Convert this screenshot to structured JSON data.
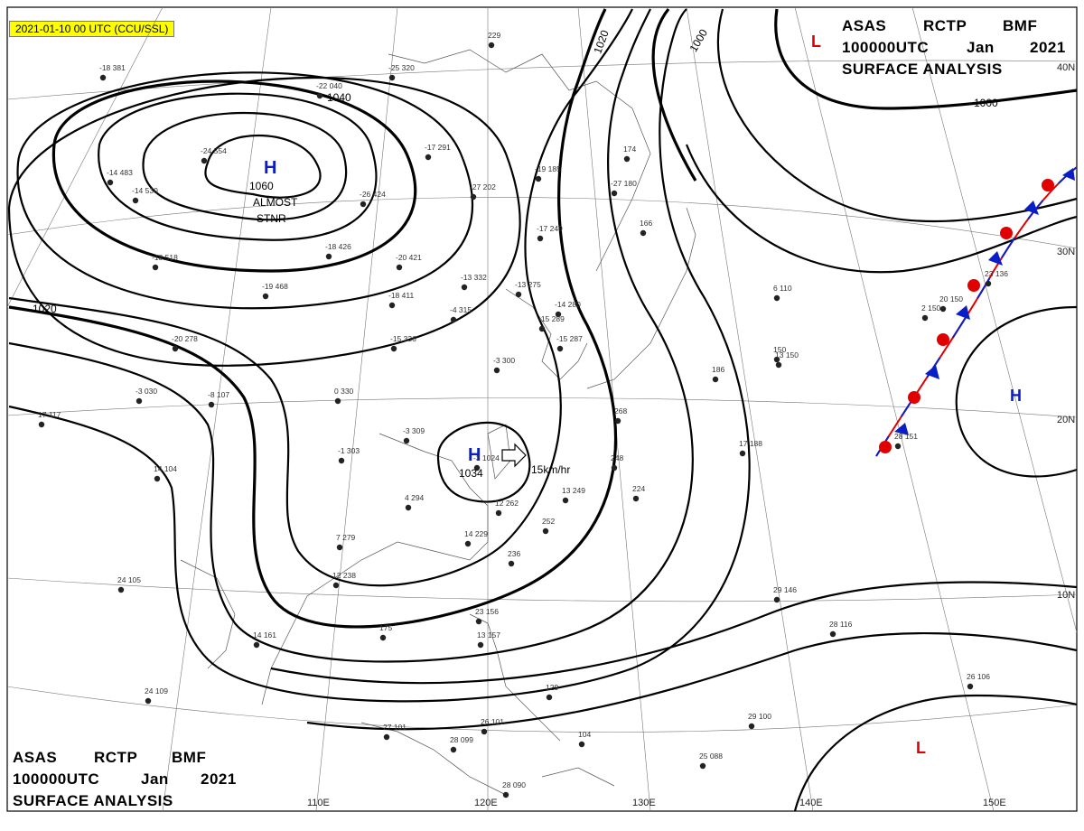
{
  "date_badge": "2021-01-10 00 UTC (CCU/SSL)",
  "title_top": {
    "line1": [
      "ASAS",
      "RCTP",
      "BMF"
    ],
    "line2": [
      "100000UTC",
      "Jan",
      "2021"
    ],
    "line3": "SURFACE ANALYSIS"
  },
  "title_bottom": {
    "line1": [
      "ASAS",
      "RCTP",
      "BMF"
    ],
    "line2": [
      "100000UTC",
      "Jan",
      "2021"
    ],
    "line3": "SURFACE ANALYSIS"
  },
  "pressure_centers": [
    {
      "type": "H",
      "value": "1060",
      "color": "#0a1ec8"
    },
    {
      "type": "H",
      "value": "1034",
      "color": "#0a1ec8"
    },
    {
      "type": "H",
      "value": "",
      "color": "#0a1ec8"
    },
    {
      "type": "L",
      "value": "",
      "color": "#e00000"
    },
    {
      "type": "L",
      "value": "",
      "color": "#e00000"
    }
  ],
  "stationary_note": [
    "ALMOST",
    "STNR"
  ],
  "motion_label": "15km/hr",
  "isobar_labels": [
    "1040",
    "1020",
    "1020",
    "1000",
    "1000"
  ],
  "lat_labels": [
    "40N",
    "30N",
    "20N",
    "10N"
  ],
  "lon_labels": [
    "110E",
    "120E",
    "130E",
    "140E",
    "150E"
  ],
  "front": {
    "type": "stationary",
    "warm_color": "#e00000",
    "cold_color": "#0a1ec8"
  },
  "stations": [
    "-18 381",
    "-22 040",
    "-24 554",
    "-25 320",
    "-17 291",
    "229",
    "-14 483",
    "-14 530",
    "-26 424",
    "-18 426",
    "-20 421",
    "-19 185",
    "-27 202",
    "-27 180",
    "174",
    "-17 249",
    "-18 518",
    "-19 468",
    "-18 411",
    "-13 332",
    "-13 275",
    "-14 280",
    "-4 315",
    "-15 289",
    "-15 287",
    "166",
    "-15 336",
    "-20 278",
    "-8 107",
    "-3 030",
    "0 330",
    "-3 300",
    "186",
    "150",
    "17 117",
    "-3 309",
    "-1 303",
    "14 104",
    "248",
    "17 188",
    "-3 1024",
    "4 294",
    "13 249",
    "224",
    "12 262",
    "252",
    "7 279",
    "14 229",
    "236",
    "12 238",
    "24 105",
    "14 161",
    "175",
    "23 156",
    "13 157",
    "28 116",
    "29 146",
    "24 109",
    "129",
    "26 106",
    "29 100",
    "27 101",
    "28 099",
    "26 101",
    "104",
    "25 088",
    "28 090",
    "268",
    "2 150",
    "6 110",
    "23 136",
    "20 150",
    "28 151",
    "13 150"
  ]
}
